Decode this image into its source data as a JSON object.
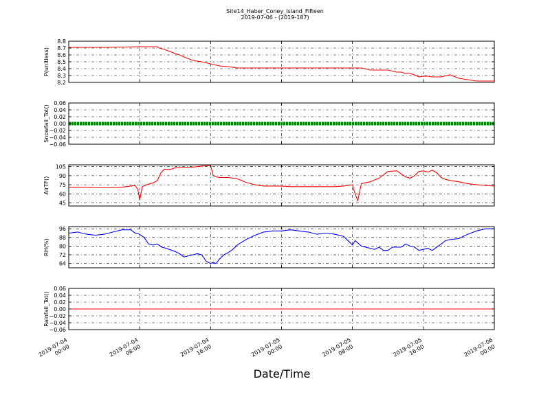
{
  "figure": {
    "title": "Site14_Haber_Coney_Island_Fifteen",
    "subtitle": "2019-07-06 - (2019-187)",
    "xlabel": "Date/Time",
    "x_ticks": [
      "2019-07-04\n00:00",
      "2019-07-04\n08:00",
      "2019-07-04\n16:00",
      "2019-07-05\n00:00",
      "2019-07-05\n08:00",
      "2019-07-05\n16:00",
      "2019-07-06\n00:00"
    ]
  },
  "chart_data": [
    {
      "type": "line",
      "ylabel": "P(unitless)",
      "ylim": [
        8.2,
        8.8
      ],
      "yticks": [
        "8.2",
        "8.3",
        "8.4",
        "8.5",
        "8.6",
        "8.7",
        "8.8"
      ],
      "xlim": [
        0,
        48
      ],
      "grid": true,
      "series": [
        {
          "color": "#ff0000",
          "x": [
            0,
            4,
            8,
            10,
            10.2,
            10.8,
            11.4,
            12,
            12.5,
            13,
            14,
            15,
            16,
            17,
            18,
            19,
            24,
            30,
            32,
            33,
            34,
            35,
            36,
            37,
            37.5,
            38,
            38.5,
            39,
            39.5,
            40,
            40.5,
            41,
            41.5,
            42,
            43,
            44,
            46,
            48
          ],
          "y": [
            8.71,
            8.71,
            8.72,
            8.72,
            8.7,
            8.68,
            8.65,
            8.62,
            8.6,
            8.57,
            8.52,
            8.5,
            8.47,
            8.44,
            8.43,
            8.41,
            8.41,
            8.41,
            8.41,
            8.41,
            8.38,
            8.38,
            8.38,
            8.35,
            8.35,
            8.33,
            8.33,
            8.31,
            8.28,
            8.29,
            8.29,
            8.28,
            8.28,
            8.28,
            8.31,
            8.26,
            8.22,
            8.22
          ]
        }
      ]
    },
    {
      "type": "line",
      "ylabel": "Snowfall_Tot()",
      "ylim": [
        -0.06,
        0.06
      ],
      "yticks": [
        "−0.06",
        "−0.04",
        "−0.02",
        "0.00",
        "0.02",
        "0.04",
        "0.06"
      ],
      "xlim": [
        0,
        48
      ],
      "grid": true,
      "series": [
        {
          "color": "#008000",
          "marker": "point",
          "x": [
            0,
            48
          ],
          "y": [
            0,
            0
          ]
        }
      ]
    },
    {
      "type": "line",
      "ylabel": "AirTF()",
      "ylim": [
        40,
        108
      ],
      "yticks": [
        "45",
        "60",
        "75",
        "90",
        "105"
      ],
      "xlim": [
        0,
        48
      ],
      "grid": true,
      "series": [
        {
          "color": "#ff0000",
          "x": [
            0,
            1,
            2,
            3,
            4,
            5,
            6,
            7,
            7.5,
            7.8,
            8.0,
            8.3,
            8.6,
            9,
            9.5,
            10,
            10.4,
            10.8,
            11.2,
            11.6,
            12,
            13,
            14,
            15,
            16,
            16.3,
            16.6,
            17,
            18,
            19,
            20,
            21,
            22,
            23,
            24,
            25,
            26,
            27,
            28,
            29,
            30,
            31,
            32,
            32.3,
            32.6,
            33,
            34,
            35,
            36,
            37,
            38,
            38.5,
            39,
            39.5,
            40,
            40.5,
            41,
            41.5,
            42,
            42.5,
            43,
            44,
            45,
            46,
            47,
            48
          ],
          "y": [
            71,
            71,
            71,
            70,
            70,
            70,
            71,
            73,
            74,
            67,
            50,
            72,
            74,
            76,
            78,
            82,
            95,
            101,
            100,
            101,
            103,
            104,
            104,
            106,
            107,
            90,
            88,
            87,
            87,
            85,
            79,
            75,
            73,
            73,
            73,
            72,
            72,
            72,
            72,
            72,
            72,
            73,
            75,
            60,
            49,
            77,
            80,
            86,
            97,
            98,
            88,
            86,
            90,
            97,
            98,
            96,
            99,
            95,
            87,
            84,
            82,
            80,
            77,
            75,
            74,
            73
          ]
        }
      ]
    },
    {
      "type": "line",
      "ylabel": "RH(%)",
      "ylim": [
        60,
        98
      ],
      "yticks": [
        "64",
        "72",
        "80",
        "88",
        "96"
      ],
      "xlim": [
        0,
        48
      ],
      "grid": true,
      "series": [
        {
          "color": "#0000ff",
          "x": [
            0,
            1,
            2,
            3,
            4,
            5,
            6,
            7,
            7.5,
            8,
            8.5,
            9,
            9.5,
            10,
            10.5,
            11,
            12,
            12.5,
            13,
            13.5,
            14,
            14.5,
            15,
            15.5,
            16,
            16.3,
            16.6,
            17,
            17.5,
            18,
            18.5,
            19,
            20,
            21,
            22,
            23,
            24,
            25,
            26,
            27,
            28,
            29,
            30,
            31,
            32,
            32.3,
            32.6,
            33,
            33.5,
            34,
            34.5,
            35,
            35.5,
            36,
            36.5,
            37,
            37.5,
            38,
            38.5,
            39,
            39.5,
            40,
            40.5,
            41,
            41.5,
            42,
            42.5,
            43,
            44,
            45,
            46,
            47,
            48
          ],
          "y": [
            92,
            93,
            91,
            90,
            91,
            93,
            95,
            95,
            92,
            91,
            88,
            82,
            81,
            82,
            79,
            78,
            75,
            73,
            70,
            71,
            72,
            73,
            72,
            66,
            64,
            65,
            64,
            68,
            72,
            74,
            77,
            81,
            86,
            90,
            93,
            94,
            94,
            95,
            94,
            93,
            91,
            92,
            91,
            89,
            81,
            85,
            83,
            80,
            79,
            78,
            77,
            79,
            76,
            76,
            79,
            79,
            79,
            82,
            80,
            79,
            76,
            77,
            78,
            76,
            79,
            82,
            85,
            86,
            87,
            91,
            94,
            96,
            96
          ]
        }
      ]
    },
    {
      "type": "line",
      "ylabel": "Rainfall_Tot()",
      "ylim": [
        -0.06,
        0.06
      ],
      "yticks": [
        "−0.06",
        "−0.04",
        "−0.02",
        "0.00",
        "0.02",
        "0.04",
        "0.06"
      ],
      "xlim": [
        0,
        48
      ],
      "grid": true,
      "series": [
        {
          "color": "#ff0000",
          "x": [
            0,
            48
          ],
          "y": [
            0,
            0
          ]
        }
      ]
    }
  ]
}
